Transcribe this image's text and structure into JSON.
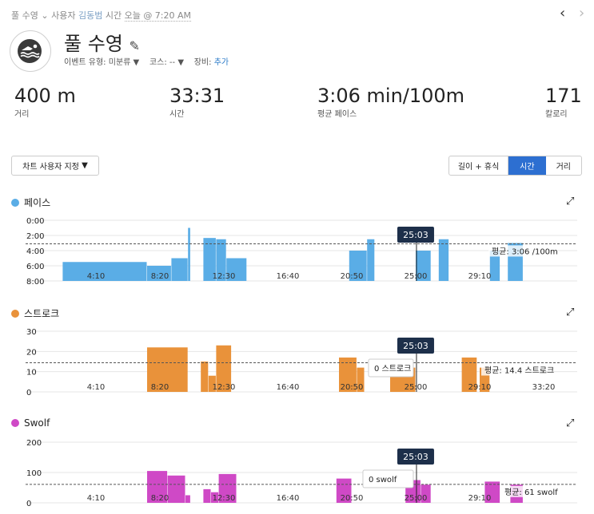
{
  "header": {
    "activity_type": "풀 수영",
    "device_label": "사용자",
    "user_name": "김동범",
    "time_prefix": "시간",
    "time_value": "오늘 @ 7:20 AM"
  },
  "title": "풀 수영",
  "meta": {
    "event_type_label": "이벤트 유형:",
    "event_type_value": "미분류",
    "course_label": "코스:",
    "course_value": "--",
    "gear_label": "장비:",
    "gear_link": "추가"
  },
  "stats": [
    {
      "value": "400 m",
      "label": "거리"
    },
    {
      "value": "33:31",
      "label": "시간"
    },
    {
      "value": "3:06 min/100m",
      "label": "평균 페이스"
    },
    {
      "value": "171",
      "label": "칼로리"
    }
  ],
  "customize_button": "차트 사용자 지정",
  "toggle": {
    "options": [
      "길이 + 휴식",
      "시간",
      "거리"
    ],
    "selected": "시간"
  },
  "colors": {
    "pace": "#5aade6",
    "stroke": "#e9923a",
    "swolf": "#cf49c6",
    "accent": "#2d6fd1",
    "tooltip": "#1d2f4a"
  },
  "icons": {
    "logo": "swimmer-icon",
    "edit": "pencil-icon",
    "expand": "expand-icon",
    "prev": "chevron-left-icon",
    "next": "chevron-right-icon"
  },
  "chart_data": [
    {
      "type": "bar",
      "name": "페이스",
      "y_ticks": [
        "0:00",
        "2:00",
        "4:00",
        "6:00",
        "8:00"
      ],
      "x_ticks": [
        "4:10",
        "8:20",
        "12:30",
        "16:40",
        "20:50",
        "25:00",
        "29:10"
      ],
      "average_label": "평균: 3:06 /100m",
      "cursor_label": "25:03",
      "bars": [
        {
          "start": "2:00",
          "end": "7:30",
          "value": "5:30"
        },
        {
          "start": "7:30",
          "end": "9:05",
          "value": "6:00"
        },
        {
          "start": "9:05",
          "end": "10:10",
          "value": "5:00"
        },
        {
          "start": "10:10",
          "end": "10:20",
          "value": "1:00"
        },
        {
          "start": "11:10",
          "end": "12:00",
          "value": "2:20"
        },
        {
          "start": "12:00",
          "end": "12:40",
          "value": "2:30"
        },
        {
          "start": "12:40",
          "end": "14:00",
          "value": "5:00"
        },
        {
          "start": "20:40",
          "end": "21:50",
          "value": "4:00"
        },
        {
          "start": "21:50",
          "end": "22:20",
          "value": "2:30"
        },
        {
          "start": "25:00",
          "end": "26:00",
          "value": "4:00"
        },
        {
          "start": "26:30",
          "end": "27:10",
          "value": "2:30"
        },
        {
          "start": "29:50",
          "end": "30:30",
          "value": "4:00"
        },
        {
          "start": "31:00",
          "end": "32:00",
          "value": "3:00"
        }
      ]
    },
    {
      "type": "bar",
      "name": "스트로크",
      "y_ticks": [
        "30",
        "20",
        "10",
        "0"
      ],
      "x_ticks": [
        "4:10",
        "8:20",
        "12:30",
        "16:40",
        "20:50",
        "25:00",
        "29:10",
        "33:20"
      ],
      "average_label": "평균: 14.4 스트로크",
      "cursor_label": "25:03",
      "hover_label": "0 스트로크",
      "bars": [
        {
          "start": "7:30",
          "end": "10:10",
          "value": 22
        },
        {
          "start": "11:00",
          "end": "11:30",
          "value": 15
        },
        {
          "start": "11:30",
          "end": "12:00",
          "value": 8
        },
        {
          "start": "12:00",
          "end": "13:00",
          "value": 23
        },
        {
          "start": "20:00",
          "end": "21:10",
          "value": 17
        },
        {
          "start": "21:10",
          "end": "21:40",
          "value": 12
        },
        {
          "start": "23:20",
          "end": "25:00",
          "value": 12
        },
        {
          "start": "28:00",
          "end": "29:00",
          "value": 17
        },
        {
          "start": "29:10",
          "end": "29:50",
          "value": 12
        }
      ]
    },
    {
      "type": "bar",
      "name": "Swolf",
      "y_ticks": [
        "200",
        "100",
        "0"
      ],
      "x_ticks": [
        "4:10",
        "8:20",
        "12:30",
        "16:40",
        "20:50",
        "25:00",
        "29:10"
      ],
      "average_label": "평균: 61 swolf",
      "cursor_label": "25:03",
      "hover_label": "0 swolf",
      "bars": [
        {
          "start": "7:30",
          "end": "8:50",
          "value": 105
        },
        {
          "start": "8:50",
          "end": "10:00",
          "value": 90
        },
        {
          "start": "10:00",
          "end": "10:20",
          "value": 25
        },
        {
          "start": "11:10",
          "end": "11:40",
          "value": 45
        },
        {
          "start": "11:40",
          "end": "12:10",
          "value": 35
        },
        {
          "start": "12:10",
          "end": "13:20",
          "value": 95
        },
        {
          "start": "19:50",
          "end": "20:50",
          "value": 80
        },
        {
          "start": "24:20",
          "end": "25:20",
          "value": 75
        },
        {
          "start": "25:20",
          "end": "26:00",
          "value": 60
        },
        {
          "start": "29:30",
          "end": "30:30",
          "value": 70
        },
        {
          "start": "31:10",
          "end": "32:00",
          "value": 60
        }
      ]
    }
  ]
}
